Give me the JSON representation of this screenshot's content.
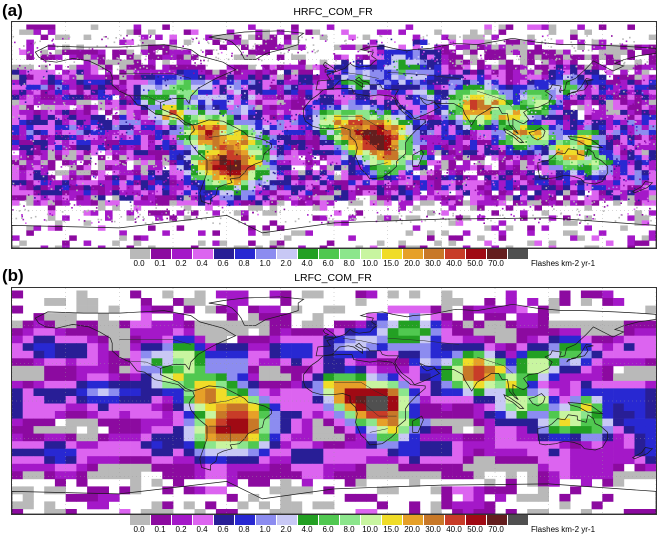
{
  "panels": [
    {
      "letter": "(a)",
      "title": "HRFC_COM_FR",
      "style": "speckled"
    },
    {
      "letter": "(b)",
      "title": "LRFC_COM_FR",
      "style": "smooth"
    }
  ],
  "legend": {
    "levels": [
      "0.0",
      "0.1",
      "0.2",
      "0.4",
      "0.6",
      "0.8",
      "1.0",
      "2.0",
      "4.0",
      "6.0",
      "8.0",
      "10.0",
      "15.0",
      "20.0",
      "30.0",
      "40.0",
      "50.0",
      "70.0"
    ],
    "units": "Flashes km-2 yr-1",
    "colors": [
      "#b9b9b9",
      "#8c0aa0",
      "#a418c8",
      "#dc64f0",
      "#281e96",
      "#2828d2",
      "#8c8cf0",
      "#c8c8f5",
      "#23a023",
      "#50c850",
      "#8ce68c",
      "#c8f5a0",
      "#f0dc28",
      "#e6a028",
      "#c87828",
      "#c83c28",
      "#a00a14",
      "#641e1e",
      "#505050"
    ]
  },
  "chart_data": {
    "type": "heatmap",
    "variable_units": "Flashes km-2 yr-1",
    "panels": [
      "HRFC_COM_FR",
      "LRFC_COM_FR"
    ],
    "levels": [
      0.0,
      0.1,
      0.2,
      0.4,
      0.6,
      0.8,
      1.0,
      2.0,
      4.0,
      6.0,
      8.0,
      10.0,
      15.0,
      20.0,
      30.0,
      40.0,
      50.0,
      70.0
    ]
  }
}
